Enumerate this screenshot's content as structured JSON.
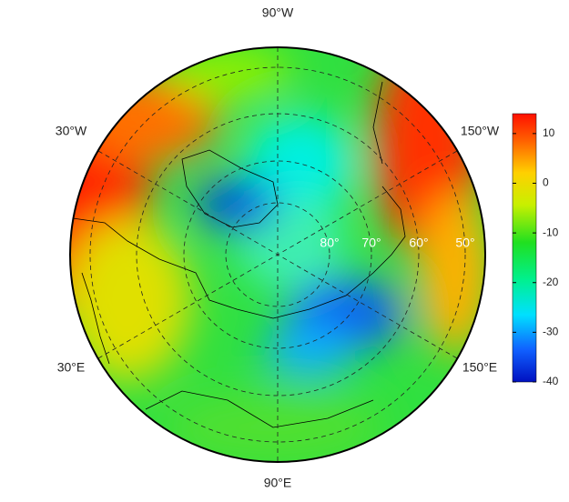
{
  "map": {
    "longitude_labels": [
      "90°W",
      "30°W",
      "150°W",
      "30°E",
      "150°E",
      "90°E"
    ],
    "latitude_labels": [
      "80°",
      "70°",
      "60°",
      "50°"
    ]
  },
  "colorbar": {
    "lim": [
      -40,
      14
    ],
    "ticks": [
      10,
      0,
      -10,
      -20,
      -30,
      -40
    ]
  }
}
